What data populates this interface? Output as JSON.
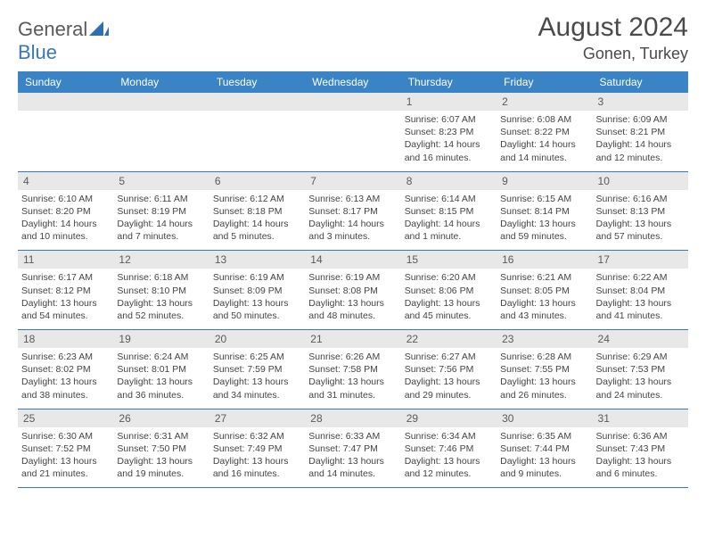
{
  "brand": {
    "part1": "General",
    "part2": "Blue"
  },
  "title": "August 2024",
  "location": "Gonen, Turkey",
  "colors": {
    "header_bg": "#3a83c5",
    "header_text": "#ffffff",
    "daynum_bg": "#e8e8e8",
    "border": "#3a78b5",
    "text": "#444444",
    "title_text": "#4a4a4a"
  },
  "weekdays": [
    "Sunday",
    "Monday",
    "Tuesday",
    "Wednesday",
    "Thursday",
    "Friday",
    "Saturday"
  ],
  "weeks": [
    [
      {
        "n": "",
        "sr": "",
        "ss": "",
        "dl": ""
      },
      {
        "n": "",
        "sr": "",
        "ss": "",
        "dl": ""
      },
      {
        "n": "",
        "sr": "",
        "ss": "",
        "dl": ""
      },
      {
        "n": "",
        "sr": "",
        "ss": "",
        "dl": ""
      },
      {
        "n": "1",
        "sr": "Sunrise: 6:07 AM",
        "ss": "Sunset: 8:23 PM",
        "dl": "Daylight: 14 hours and 16 minutes."
      },
      {
        "n": "2",
        "sr": "Sunrise: 6:08 AM",
        "ss": "Sunset: 8:22 PM",
        "dl": "Daylight: 14 hours and 14 minutes."
      },
      {
        "n": "3",
        "sr": "Sunrise: 6:09 AM",
        "ss": "Sunset: 8:21 PM",
        "dl": "Daylight: 14 hours and 12 minutes."
      }
    ],
    [
      {
        "n": "4",
        "sr": "Sunrise: 6:10 AM",
        "ss": "Sunset: 8:20 PM",
        "dl": "Daylight: 14 hours and 10 minutes."
      },
      {
        "n": "5",
        "sr": "Sunrise: 6:11 AM",
        "ss": "Sunset: 8:19 PM",
        "dl": "Daylight: 14 hours and 7 minutes."
      },
      {
        "n": "6",
        "sr": "Sunrise: 6:12 AM",
        "ss": "Sunset: 8:18 PM",
        "dl": "Daylight: 14 hours and 5 minutes."
      },
      {
        "n": "7",
        "sr": "Sunrise: 6:13 AM",
        "ss": "Sunset: 8:17 PM",
        "dl": "Daylight: 14 hours and 3 minutes."
      },
      {
        "n": "8",
        "sr": "Sunrise: 6:14 AM",
        "ss": "Sunset: 8:15 PM",
        "dl": "Daylight: 14 hours and 1 minute."
      },
      {
        "n": "9",
        "sr": "Sunrise: 6:15 AM",
        "ss": "Sunset: 8:14 PM",
        "dl": "Daylight: 13 hours and 59 minutes."
      },
      {
        "n": "10",
        "sr": "Sunrise: 6:16 AM",
        "ss": "Sunset: 8:13 PM",
        "dl": "Daylight: 13 hours and 57 minutes."
      }
    ],
    [
      {
        "n": "11",
        "sr": "Sunrise: 6:17 AM",
        "ss": "Sunset: 8:12 PM",
        "dl": "Daylight: 13 hours and 54 minutes."
      },
      {
        "n": "12",
        "sr": "Sunrise: 6:18 AM",
        "ss": "Sunset: 8:10 PM",
        "dl": "Daylight: 13 hours and 52 minutes."
      },
      {
        "n": "13",
        "sr": "Sunrise: 6:19 AM",
        "ss": "Sunset: 8:09 PM",
        "dl": "Daylight: 13 hours and 50 minutes."
      },
      {
        "n": "14",
        "sr": "Sunrise: 6:19 AM",
        "ss": "Sunset: 8:08 PM",
        "dl": "Daylight: 13 hours and 48 minutes."
      },
      {
        "n": "15",
        "sr": "Sunrise: 6:20 AM",
        "ss": "Sunset: 8:06 PM",
        "dl": "Daylight: 13 hours and 45 minutes."
      },
      {
        "n": "16",
        "sr": "Sunrise: 6:21 AM",
        "ss": "Sunset: 8:05 PM",
        "dl": "Daylight: 13 hours and 43 minutes."
      },
      {
        "n": "17",
        "sr": "Sunrise: 6:22 AM",
        "ss": "Sunset: 8:04 PM",
        "dl": "Daylight: 13 hours and 41 minutes."
      }
    ],
    [
      {
        "n": "18",
        "sr": "Sunrise: 6:23 AM",
        "ss": "Sunset: 8:02 PM",
        "dl": "Daylight: 13 hours and 38 minutes."
      },
      {
        "n": "19",
        "sr": "Sunrise: 6:24 AM",
        "ss": "Sunset: 8:01 PM",
        "dl": "Daylight: 13 hours and 36 minutes."
      },
      {
        "n": "20",
        "sr": "Sunrise: 6:25 AM",
        "ss": "Sunset: 7:59 PM",
        "dl": "Daylight: 13 hours and 34 minutes."
      },
      {
        "n": "21",
        "sr": "Sunrise: 6:26 AM",
        "ss": "Sunset: 7:58 PM",
        "dl": "Daylight: 13 hours and 31 minutes."
      },
      {
        "n": "22",
        "sr": "Sunrise: 6:27 AM",
        "ss": "Sunset: 7:56 PM",
        "dl": "Daylight: 13 hours and 29 minutes."
      },
      {
        "n": "23",
        "sr": "Sunrise: 6:28 AM",
        "ss": "Sunset: 7:55 PM",
        "dl": "Daylight: 13 hours and 26 minutes."
      },
      {
        "n": "24",
        "sr": "Sunrise: 6:29 AM",
        "ss": "Sunset: 7:53 PM",
        "dl": "Daylight: 13 hours and 24 minutes."
      }
    ],
    [
      {
        "n": "25",
        "sr": "Sunrise: 6:30 AM",
        "ss": "Sunset: 7:52 PM",
        "dl": "Daylight: 13 hours and 21 minutes."
      },
      {
        "n": "26",
        "sr": "Sunrise: 6:31 AM",
        "ss": "Sunset: 7:50 PM",
        "dl": "Daylight: 13 hours and 19 minutes."
      },
      {
        "n": "27",
        "sr": "Sunrise: 6:32 AM",
        "ss": "Sunset: 7:49 PM",
        "dl": "Daylight: 13 hours and 16 minutes."
      },
      {
        "n": "28",
        "sr": "Sunrise: 6:33 AM",
        "ss": "Sunset: 7:47 PM",
        "dl": "Daylight: 13 hours and 14 minutes."
      },
      {
        "n": "29",
        "sr": "Sunrise: 6:34 AM",
        "ss": "Sunset: 7:46 PM",
        "dl": "Daylight: 13 hours and 12 minutes."
      },
      {
        "n": "30",
        "sr": "Sunrise: 6:35 AM",
        "ss": "Sunset: 7:44 PM",
        "dl": "Daylight: 13 hours and 9 minutes."
      },
      {
        "n": "31",
        "sr": "Sunrise: 6:36 AM",
        "ss": "Sunset: 7:43 PM",
        "dl": "Daylight: 13 hours and 6 minutes."
      }
    ]
  ]
}
